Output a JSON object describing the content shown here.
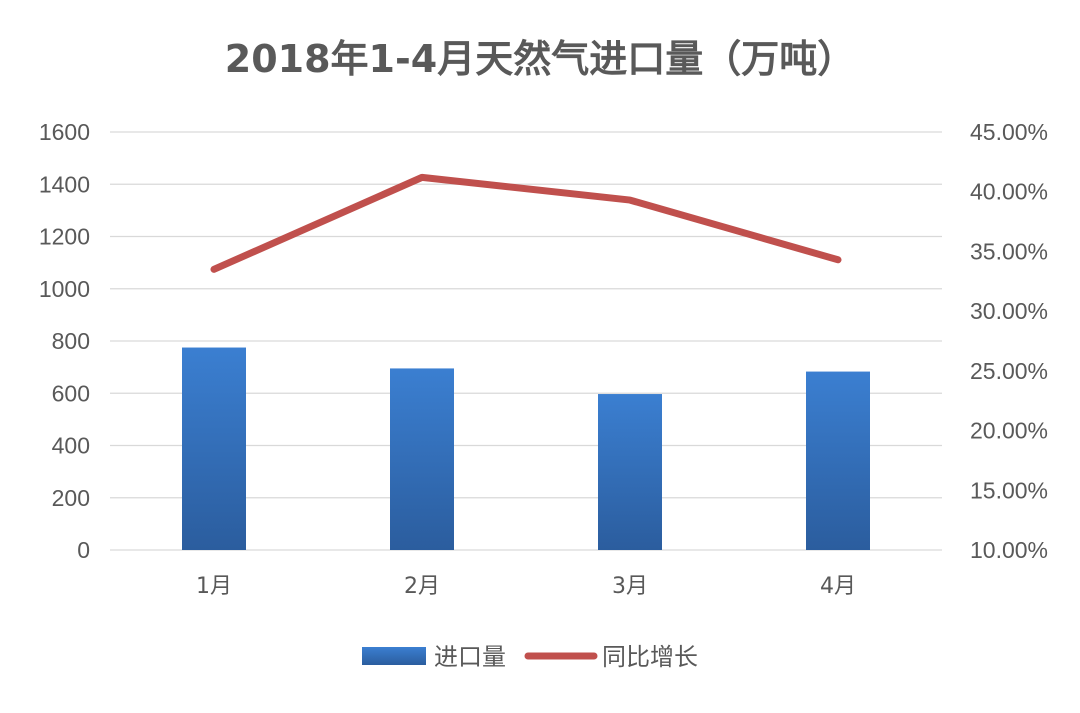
{
  "chart_data": {
    "type": "bar",
    "title": "2018年1-4月天然气进口量（万吨）",
    "categories": [
      "1月",
      "2月",
      "3月",
      "4月"
    ],
    "series": [
      {
        "name": "进口量",
        "type": "bar",
        "axis": "left",
        "color": "#3a76c4",
        "values": [
          775,
          695,
          597,
          683
        ]
      },
      {
        "name": "同比增长",
        "type": "line",
        "axis": "right",
        "color": "#c0504d",
        "values": [
          0.335,
          0.412,
          0.393,
          0.343
        ]
      }
    ],
    "y_left": {
      "min": 0,
      "max": 1600,
      "ticks": [
        "0",
        "200",
        "400",
        "600",
        "800",
        "1000",
        "1200",
        "1400",
        "1600"
      ]
    },
    "y_right": {
      "min": 0.1,
      "max": 0.45,
      "ticks": [
        "10.00%",
        "15.00%",
        "20.00%",
        "25.00%",
        "30.00%",
        "35.00%",
        "40.00%",
        "45.00%"
      ]
    },
    "grid": true,
    "legend": "bottom"
  }
}
